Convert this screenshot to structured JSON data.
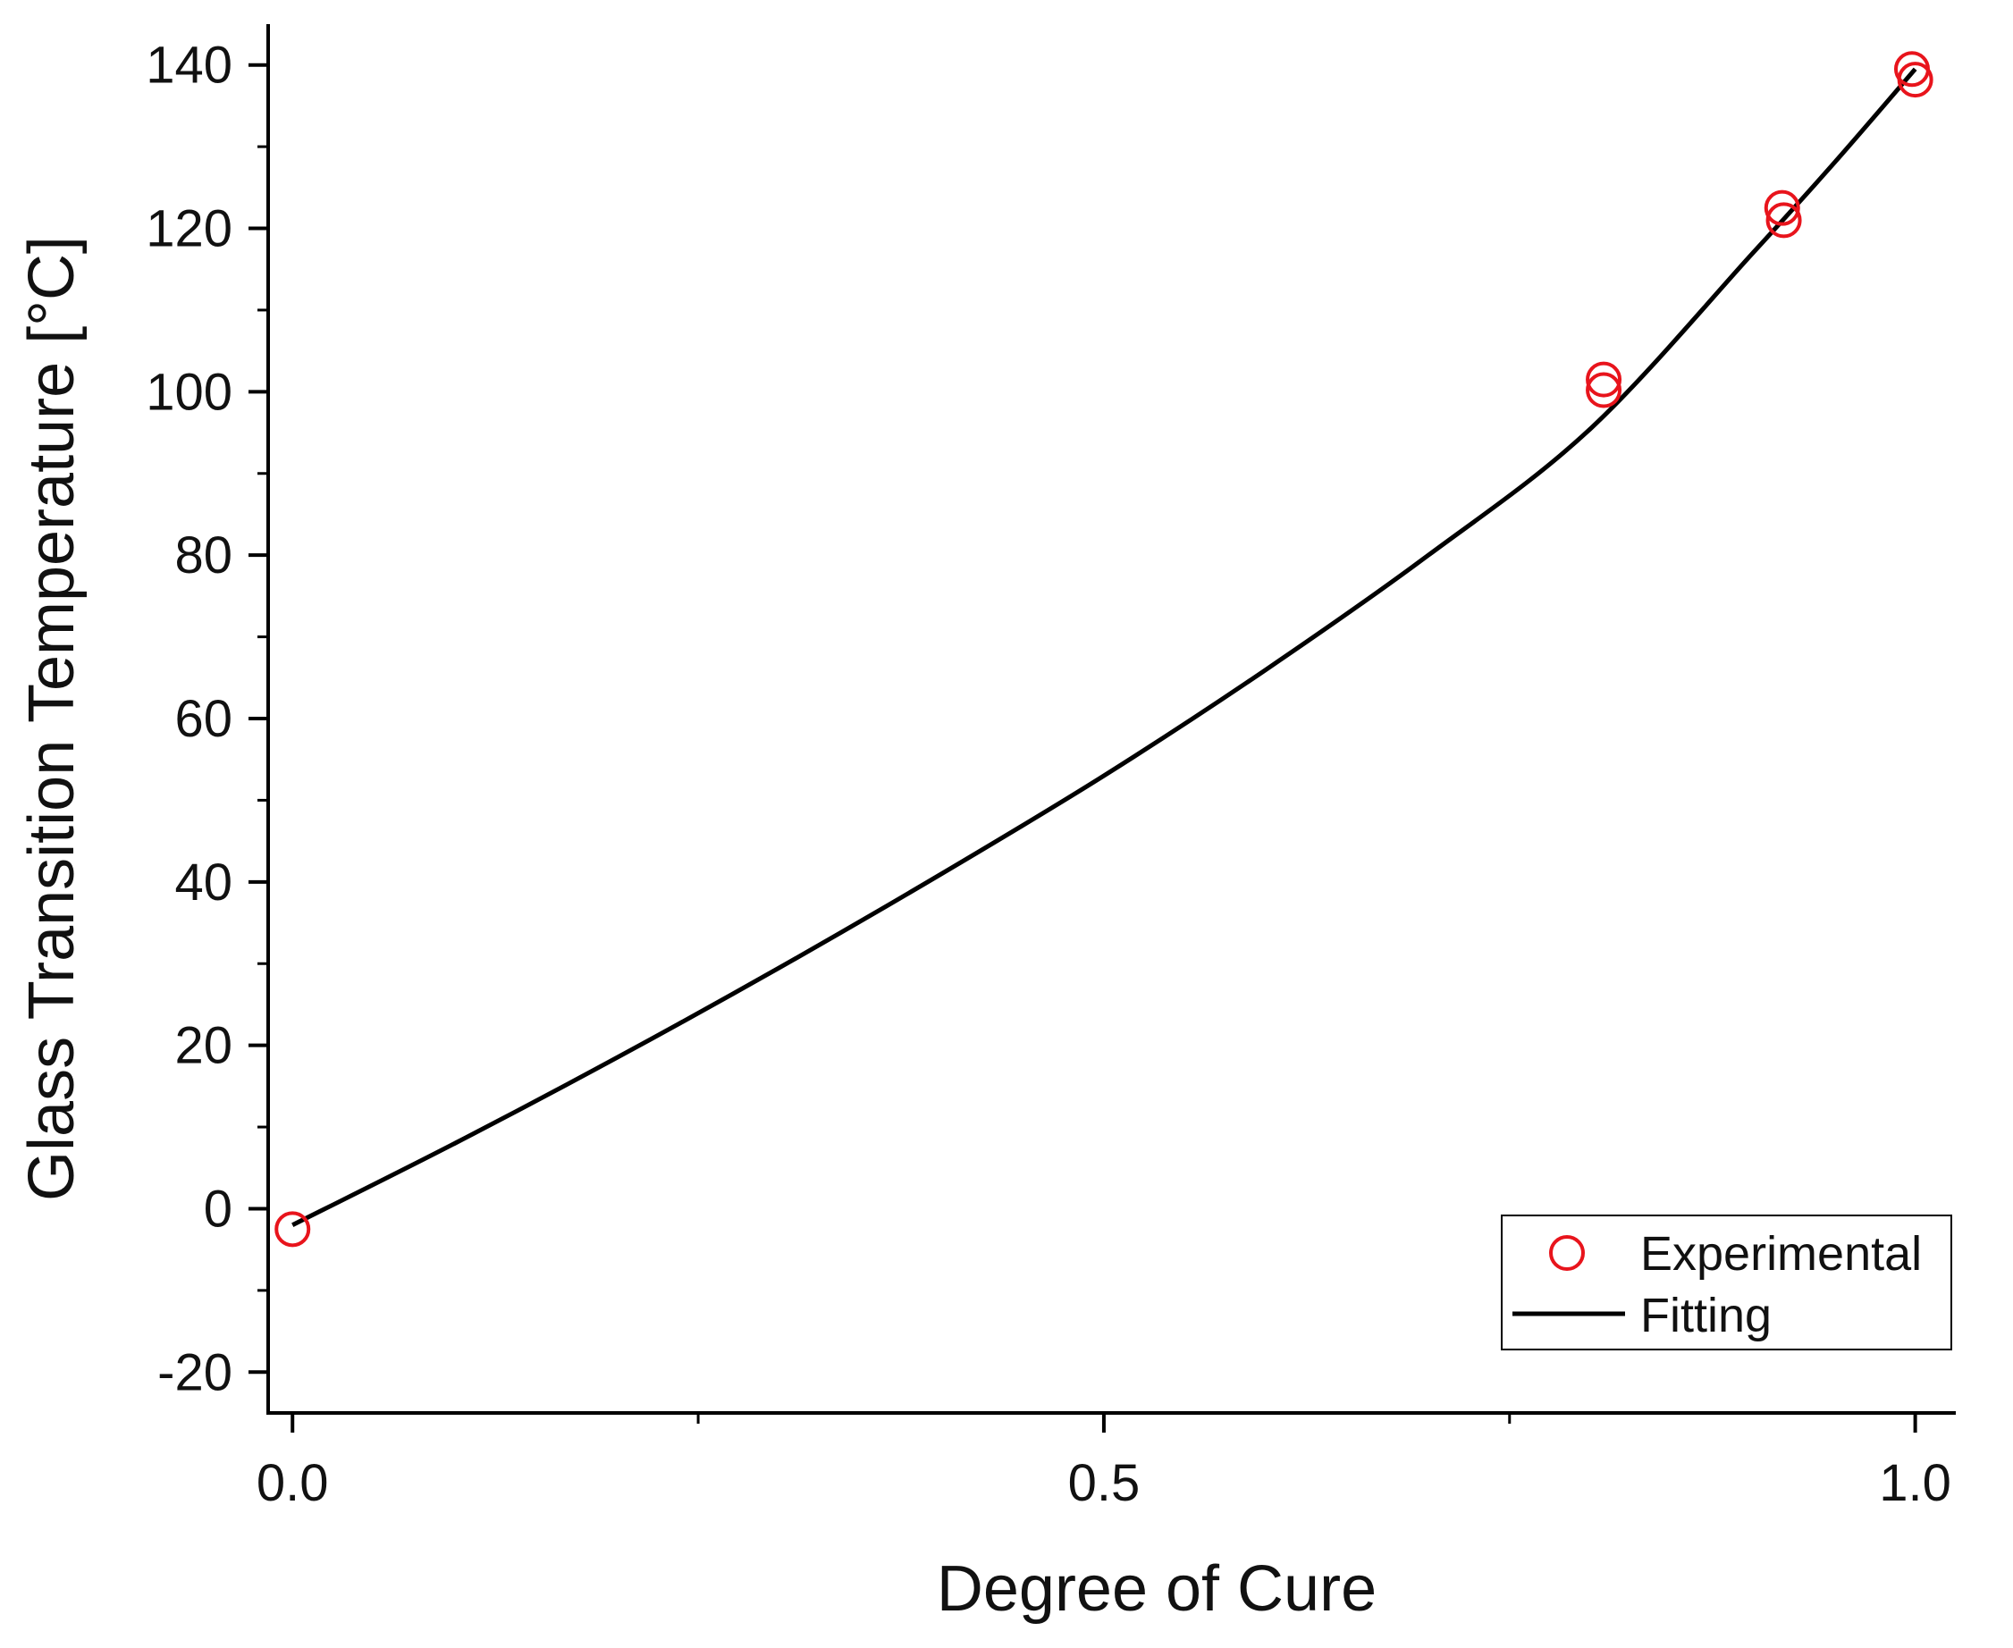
{
  "chart_data": {
    "type": "scatter",
    "title": "",
    "xlabel": "Degree of Cure",
    "ylabel": "Glass Transition Temperature [°C]",
    "xlim": [
      -0.015,
      1.025
    ],
    "ylim": [
      -25,
      145
    ],
    "x_ticks": [
      0.0,
      0.5,
      1.0
    ],
    "x_tick_labels": [
      "0.0",
      "0.5",
      "1.0"
    ],
    "x_minor_ticks": [
      0.25,
      0.75
    ],
    "y_ticks": [
      -20,
      0,
      20,
      40,
      60,
      80,
      100,
      120,
      140
    ],
    "y_tick_labels": [
      "-20",
      "0",
      "20",
      "40",
      "60",
      "80",
      "100",
      "120",
      "140"
    ],
    "y_minor_ticks": [
      -10,
      10,
      30,
      50,
      70,
      90,
      110,
      130
    ],
    "grid": false,
    "legend_position": "bottom-right",
    "series": [
      {
        "name": "Experimental",
        "kind": "scatter",
        "marker": "open-circle",
        "color": "#e8141c",
        "points": [
          {
            "x": 0.0,
            "y": -2.5
          },
          {
            "x": 0.808,
            "y": 101.5
          },
          {
            "x": 0.808,
            "y": 100.2
          },
          {
            "x": 0.918,
            "y": 122.5
          },
          {
            "x": 0.919,
            "y": 121.0
          },
          {
            "x": 0.998,
            "y": 139.5
          },
          {
            "x": 1.0,
            "y": 138.2
          }
        ]
      },
      {
        "name": "Fitting",
        "kind": "line",
        "color": "#000000",
        "points": [
          {
            "x": 0.0,
            "y": -2.0
          },
          {
            "x": 0.1,
            "y": 8.0
          },
          {
            "x": 0.2,
            "y": 18.5
          },
          {
            "x": 0.3,
            "y": 29.5
          },
          {
            "x": 0.4,
            "y": 41.0
          },
          {
            "x": 0.5,
            "y": 53.0
          },
          {
            "x": 0.6,
            "y": 66.0
          },
          {
            "x": 0.7,
            "y": 80.0
          },
          {
            "x": 0.8,
            "y": 95.5
          },
          {
            "x": 0.9,
            "y": 117.0
          },
          {
            "x": 0.95,
            "y": 128.0
          },
          {
            "x": 1.0,
            "y": 139.5
          }
        ]
      }
    ]
  }
}
